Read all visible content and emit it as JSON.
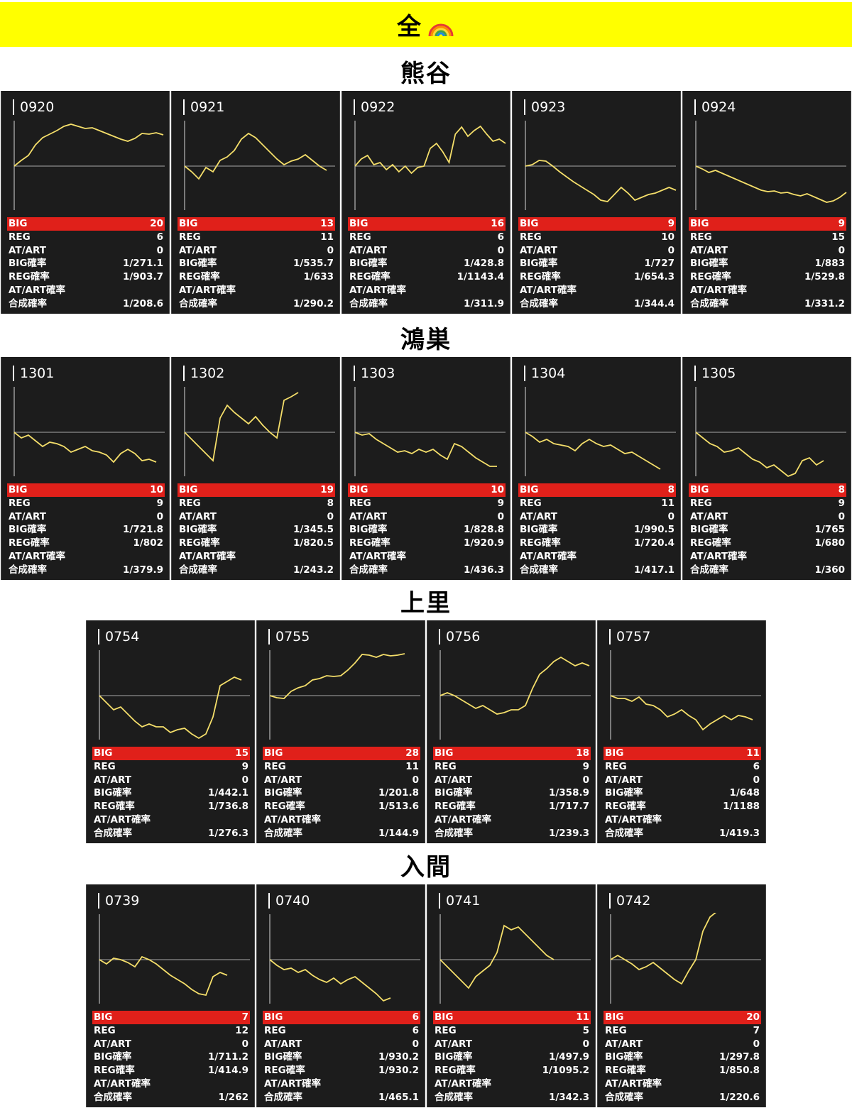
{
  "banner": {
    "title": "全"
  },
  "stat_labels": {
    "big": "BIG",
    "reg": "REG",
    "at": "AT/ART",
    "big_rate": "BIG確率",
    "reg_rate": "REG確率",
    "at_rate": "AT/ART確率",
    "total_rate": "合成確率"
  },
  "colors": {
    "banner": "#ffff00",
    "card": "#1c1c1c",
    "big_bar": "#e0201a",
    "line": "#f4de6a"
  },
  "sections": [
    {
      "title": "熊谷",
      "cards": [
        {
          "id": "0920",
          "big": "20",
          "reg": "6",
          "at": "0",
          "big_rate": "1/271.1",
          "reg_rate": "1/903.7",
          "at_rate": "",
          "total_rate": "1/208.6",
          "trend": [
            0,
            8,
            15,
            30,
            40,
            45,
            50,
            56,
            59,
            56,
            53,
            54,
            50,
            46,
            42,
            38,
            35,
            39,
            46,
            45,
            47,
            44
          ]
        },
        {
          "id": "0921",
          "big": "13",
          "reg": "11",
          "at": "0",
          "big_rate": "1/535.7",
          "reg_rate": "1/633",
          "at_rate": "",
          "total_rate": "1/290.2",
          "trend": [
            0,
            -8,
            -18,
            -2,
            -8,
            8,
            13,
            22,
            38,
            46,
            40,
            30,
            20,
            10,
            2,
            7,
            10,
            16,
            8,
            0,
            -6
          ]
        },
        {
          "id": "0922",
          "big": "16",
          "reg": "6",
          "at": "0",
          "big_rate": "1/428.8",
          "reg_rate": "1/1143.4",
          "at_rate": "",
          "total_rate": "1/311.9",
          "trend": [
            0,
            10,
            15,
            2,
            5,
            -5,
            2,
            -8,
            0,
            -10,
            -2,
            0,
            25,
            32,
            20,
            5,
            45,
            55,
            42,
            50,
            56,
            45,
            35,
            38,
            32
          ]
        },
        {
          "id": "0923",
          "big": "9",
          "reg": "10",
          "at": "0",
          "big_rate": "1/727",
          "reg_rate": "1/654.3",
          "at_rate": "",
          "total_rate": "1/344.4",
          "trend": [
            0,
            2,
            8,
            7,
            0,
            -8,
            -15,
            -22,
            -28,
            -34,
            -40,
            -48,
            -50,
            -40,
            -30,
            -38,
            -48,
            -44,
            -40,
            -38,
            -34,
            -30,
            -34
          ]
        },
        {
          "id": "0924",
          "big": "9",
          "reg": "15",
          "at": "0",
          "big_rate": "1/883",
          "reg_rate": "1/529.8",
          "at_rate": "",
          "total_rate": "1/331.2",
          "trend": [
            0,
            -4,
            -9,
            -6,
            -10,
            -14,
            -18,
            -22,
            -26,
            -30,
            -34,
            -36,
            -35,
            -38,
            -37,
            -40,
            -42,
            -39,
            -43,
            -47,
            -51,
            -49,
            -44,
            -37
          ]
        }
      ]
    },
    {
      "title": "鴻巣",
      "cards": [
        {
          "id": "1301",
          "big": "10",
          "reg": "9",
          "at": "0",
          "big_rate": "1/721.8",
          "reg_rate": "1/802",
          "at_rate": "",
          "total_rate": "1/379.9",
          "trend": [
            0,
            -8,
            -4,
            -12,
            -20,
            -14,
            -16,
            -20,
            -28,
            -24,
            -20,
            -26,
            -28,
            -32,
            -42,
            -30,
            -24,
            -30,
            -40,
            -38,
            -42
          ]
        },
        {
          "id": "1302",
          "big": "19",
          "reg": "8",
          "at": "0",
          "big_rate": "1/345.5",
          "reg_rate": "1/820.5",
          "at_rate": "",
          "total_rate": "1/243.2",
          "trend": [
            0,
            -10,
            -20,
            -30,
            -40,
            20,
            38,
            28,
            20,
            12,
            22,
            10,
            0,
            -8,
            45,
            50,
            56
          ]
        },
        {
          "id": "1303",
          "big": "10",
          "reg": "9",
          "at": "0",
          "big_rate": "1/828.8",
          "reg_rate": "1/920.9",
          "at_rate": "",
          "total_rate": "1/436.3",
          "trend": [
            0,
            -4,
            -2,
            -10,
            -16,
            -22,
            -28,
            -26,
            -30,
            -24,
            -28,
            -24,
            -32,
            -38,
            -16,
            -20,
            -28,
            -36,
            -42,
            -48,
            -48
          ]
        },
        {
          "id": "1304",
          "big": "8",
          "reg": "11",
          "at": "0",
          "big_rate": "1/990.5",
          "reg_rate": "1/720.4",
          "at_rate": "",
          "total_rate": "1/417.1",
          "trend": [
            0,
            -6,
            -14,
            -10,
            -16,
            -18,
            -20,
            -26,
            -16,
            -10,
            -16,
            -20,
            -18,
            -24,
            -30,
            -28,
            -34,
            -40,
            -46,
            -52
          ]
        },
        {
          "id": "1305",
          "big": "8",
          "reg": "9",
          "at": "0",
          "big_rate": "1/765",
          "reg_rate": "1/680",
          "at_rate": "",
          "total_rate": "1/360",
          "trend": [
            0,
            -8,
            -16,
            -20,
            -28,
            -26,
            -22,
            -30,
            -38,
            -42,
            -50,
            -46,
            -54,
            -62,
            -58,
            -40,
            -36,
            -46,
            -40
          ]
        }
      ]
    },
    {
      "title": "上里",
      "cards": [
        {
          "id": "0754",
          "big": "15",
          "reg": "9",
          "at": "0",
          "big_rate": "1/442.1",
          "reg_rate": "1/736.8",
          "at_rate": "",
          "total_rate": "1/276.3",
          "trend": [
            0,
            -10,
            -20,
            -16,
            -26,
            -36,
            -44,
            -40,
            -44,
            -44,
            -52,
            -48,
            -46,
            -54,
            -60,
            -54,
            -30,
            14,
            20,
            26,
            22
          ]
        },
        {
          "id": "0755",
          "big": "28",
          "reg": "11",
          "at": "0",
          "big_rate": "1/201.8",
          "reg_rate": "1/513.6",
          "at_rate": "",
          "total_rate": "1/144.9",
          "trend": [
            0,
            -3,
            -4,
            6,
            11,
            14,
            22,
            24,
            28,
            27,
            28,
            36,
            46,
            58,
            57,
            54,
            58,
            56,
            57,
            59
          ]
        },
        {
          "id": "0756",
          "big": "18",
          "reg": "9",
          "at": "0",
          "big_rate": "1/358.9",
          "reg_rate": "1/717.7",
          "at_rate": "",
          "total_rate": "1/239.3",
          "trend": [
            0,
            4,
            0,
            -6,
            -12,
            -18,
            -14,
            -20,
            -26,
            -24,
            -20,
            -20,
            -14,
            10,
            30,
            38,
            48,
            54,
            48,
            42,
            46,
            42
          ]
        },
        {
          "id": "0757",
          "big": "11",
          "reg": "6",
          "at": "0",
          "big_rate": "1/648",
          "reg_rate": "1/1188",
          "at_rate": "",
          "total_rate": "1/419.3",
          "trend": [
            0,
            -4,
            -4,
            -8,
            -2,
            -12,
            -14,
            -20,
            -30,
            -26,
            -20,
            -28,
            -34,
            -48,
            -40,
            -34,
            -28,
            -34,
            -28,
            -30,
            -34
          ]
        }
      ]
    },
    {
      "title": "入間",
      "cards": [
        {
          "id": "0739",
          "big": "7",
          "reg": "12",
          "at": "0",
          "big_rate": "1/711.2",
          "reg_rate": "1/414.9",
          "at_rate": "",
          "total_rate": "1/262",
          "trend": [
            0,
            -6,
            2,
            0,
            -4,
            -10,
            4,
            0,
            -6,
            -14,
            -22,
            -28,
            -34,
            -42,
            -48,
            -50,
            -24,
            -18,
            -22
          ]
        },
        {
          "id": "0740",
          "big": "6",
          "reg": "6",
          "at": "0",
          "big_rate": "1/930.2",
          "reg_rate": "1/930.2",
          "at_rate": "",
          "total_rate": "1/465.1",
          "trend": [
            0,
            -8,
            -14,
            -12,
            -18,
            -14,
            -22,
            -28,
            -32,
            -26,
            -34,
            -28,
            -24,
            -32,
            -40,
            -48,
            -58,
            -54
          ]
        },
        {
          "id": "0741",
          "big": "11",
          "reg": "5",
          "at": "0",
          "big_rate": "1/497.9",
          "reg_rate": "1/1095.2",
          "at_rate": "",
          "total_rate": "1/342.3",
          "trend": [
            0,
            -10,
            -20,
            -30,
            -40,
            -24,
            -16,
            -8,
            10,
            48,
            42,
            46,
            36,
            26,
            16,
            6,
            0
          ]
        },
        {
          "id": "0742",
          "big": "20",
          "reg": "7",
          "at": "0",
          "big_rate": "1/297.8",
          "reg_rate": "1/850.8",
          "at_rate": "",
          "total_rate": "1/220.6",
          "trend": [
            0,
            6,
            0,
            -6,
            -14,
            -10,
            -4,
            -12,
            -20,
            -28,
            -34,
            -16,
            0,
            40,
            60,
            68
          ]
        }
      ]
    }
  ]
}
